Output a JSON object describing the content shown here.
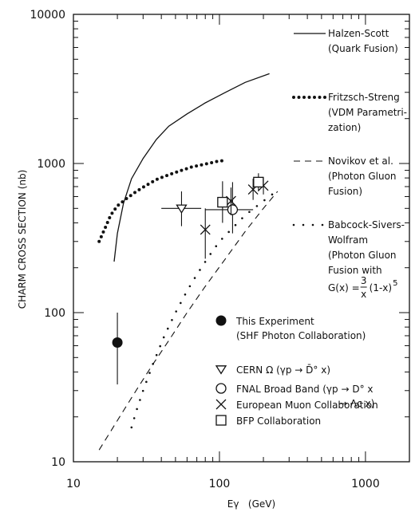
{
  "chart_data": {
    "type": "scatter",
    "title": "",
    "xlabel": "Eγ   (GeV)",
    "ylabel": "CHARM CROSS SECTION  (nb)",
    "xscale": "log",
    "yscale": "log",
    "xlim": [
      10,
      2000
    ],
    "ylim": [
      10,
      10000
    ],
    "x_ticks": [
      {
        "value": 10,
        "label": "10"
      },
      {
        "value": 100,
        "label": "100"
      },
      {
        "value": 1000,
        "label": "1000"
      }
    ],
    "y_ticks": [
      {
        "value": 10,
        "label": "10"
      },
      {
        "value": 100,
        "label": "100"
      },
      {
        "value": 1000,
        "label": "1000"
      },
      {
        "value": 10000,
        "label": "10000"
      }
    ],
    "grid": false,
    "legend_position": "right",
    "curves": [
      {
        "name_lines": [
          "Halzen-Scott",
          "(Quark Fusion)"
        ],
        "style": "solid",
        "points": [
          [
            19,
            220
          ],
          [
            20,
            340
          ],
          [
            22,
            540
          ],
          [
            25,
            790
          ],
          [
            30,
            1080
          ],
          [
            37,
            1450
          ],
          [
            45,
            1780
          ],
          [
            60,
            2150
          ],
          [
            80,
            2550
          ],
          [
            110,
            3000
          ],
          [
            150,
            3500
          ],
          [
            220,
            4000
          ]
        ]
      },
      {
        "name_lines": [
          "Fritzsch-Streng",
          "(VDM Parametri-",
          "zation)"
        ],
        "style": "dotted",
        "points": [
          [
            15,
            300
          ],
          [
            16.5,
            370
          ],
          [
            18,
            450
          ],
          [
            20,
            520
          ],
          [
            23,
            580
          ],
          [
            27,
            650
          ],
          [
            32,
            720
          ],
          [
            38,
            790
          ],
          [
            45,
            840
          ],
          [
            55,
            900
          ],
          [
            65,
            950
          ],
          [
            80,
            990
          ],
          [
            95,
            1030
          ],
          [
            110,
            1050
          ]
        ]
      },
      {
        "name_lines": [
          "Novikov et al.",
          "(Photon Gluon",
          "Fusion)"
        ],
        "style": "dashed",
        "points": [
          [
            15,
            12
          ],
          [
            18,
            16
          ],
          [
            22,
            22
          ],
          [
            28,
            32
          ],
          [
            35,
            45
          ],
          [
            45,
            65
          ],
          [
            60,
            100
          ],
          [
            80,
            150
          ],
          [
            110,
            230
          ],
          [
            150,
            350
          ],
          [
            200,
            500
          ],
          [
            250,
            650
          ]
        ]
      },
      {
        "name_lines": [
          "Babcock-Sivers-",
          "Wolfram",
          "(Photon Gluon",
          "Fusion with"
        ],
        "formula": {
          "prefix": "G(x) = ",
          "frac_num": "3",
          "frac_den": "x",
          "suffix": "(1-x)",
          "exponent": "5"
        },
        "style": "dashdot",
        "points": [
          [
            25,
            17
          ],
          [
            27,
            22
          ],
          [
            30,
            30
          ],
          [
            35,
            45
          ],
          [
            42,
            70
          ],
          [
            50,
            100
          ],
          [
            60,
            140
          ],
          [
            70,
            180
          ],
          [
            85,
            240
          ],
          [
            100,
            300
          ],
          [
            120,
            360
          ],
          [
            150,
            450
          ],
          [
            200,
            560
          ],
          [
            250,
            660
          ]
        ]
      }
    ],
    "experiments": [
      {
        "name_lines": [
          "This Experiment",
          "(SHF Photon Collaboration)"
        ],
        "marker": "filled-circle",
        "points": [
          {
            "x": 20,
            "y": 63,
            "y_lo": 33,
            "y_hi": 100
          }
        ]
      },
      {
        "name_lines": [
          "CERN Ω (γp → D̄° x)"
        ],
        "marker": "triangle-down",
        "points": [
          {
            "x": 55,
            "y": 500,
            "y_lo": 380,
            "y_hi": 650,
            "x_lo": 40,
            "x_hi": 75
          }
        ]
      },
      {
        "name_lines": [
          "FNAL Broad Band (γp → D° x",
          "→ Λc x)"
        ],
        "marker": "open-circle",
        "points": [
          {
            "x": 123,
            "y": 490,
            "y_lo": 340,
            "y_hi": 750,
            "x_lo": 80,
            "x_hi": 170
          }
        ]
      },
      {
        "name_lines": [
          "European Muon Collaboration"
        ],
        "marker": "cross",
        "points": [
          {
            "x": 80,
            "y": 360,
            "y_lo": 230,
            "y_hi": 500
          },
          {
            "x": 120,
            "y": 560,
            "y_lo": 450,
            "y_hi": 690
          },
          {
            "x": 170,
            "y": 670,
            "y_lo": 570,
            "y_hi": 790
          },
          {
            "x": 200,
            "y": 710,
            "y_lo": 620,
            "y_hi": 810
          }
        ]
      },
      {
        "name_lines": [
          "BFP Collaboration"
        ],
        "marker": "open-square",
        "points": [
          {
            "x": 105,
            "y": 550,
            "y_lo": 400,
            "y_hi": 760
          },
          {
            "x": 185,
            "y": 750,
            "y_lo": 650,
            "y_hi": 860
          }
        ]
      }
    ]
  }
}
